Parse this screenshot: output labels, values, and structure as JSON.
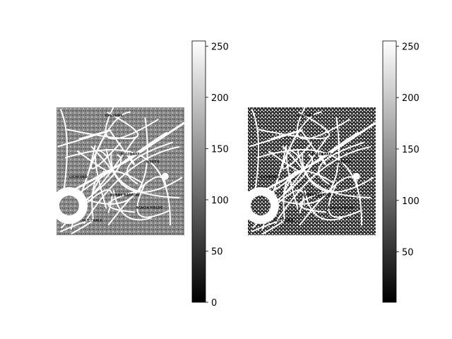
{
  "chart_data": [
    {
      "type": "heatmap",
      "title": "",
      "xlabel": "",
      "ylabel": "",
      "axes_visible": false,
      "image_description": "grayscale scanned street map",
      "colormap": "gray",
      "colorbar": {
        "range": [
          0,
          255
        ],
        "ticks": [
          0,
          50,
          100,
          150,
          200,
          250
        ],
        "tick_labels": [
          "0",
          "50",
          "100",
          "150",
          "200",
          "250"
        ]
      },
      "map_labels": [
        "CHESSIDE",
        "LICHFORD",
        "SOLL LAKE",
        "WEST'S",
        "BURNS BARROW",
        "ACACIA FIELDS",
        "OLD CHALE"
      ]
    },
    {
      "type": "heatmap",
      "title": "",
      "xlabel": "",
      "ylabel": "",
      "axes_visible": false,
      "image_description": "same map, histogram-equalized (higher contrast)",
      "colormap": "gray",
      "colorbar": {
        "range": [
          1,
          255
        ],
        "ticks": [
          50,
          100,
          150,
          200,
          250
        ],
        "tick_labels": [
          "50",
          "100",
          "150",
          "200",
          "250"
        ]
      },
      "map_labels": [
        "CHESSIDE",
        "LICHFORD",
        "SOLL LAKE",
        "WEST'S",
        "BURNS BARROW",
        "ACACIA FIELDS",
        "OLD CHALE"
      ]
    }
  ]
}
